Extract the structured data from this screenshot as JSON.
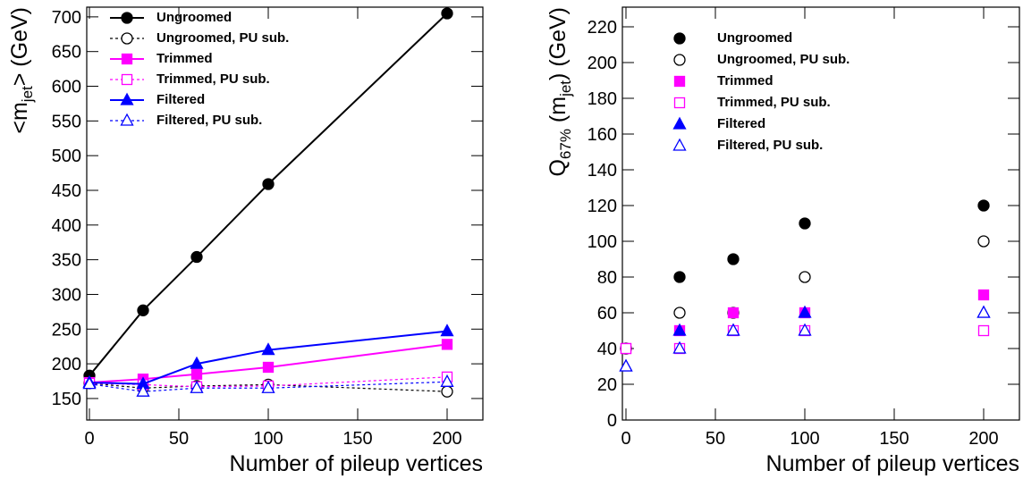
{
  "chart_data": [
    {
      "type": "line",
      "ylabel": [
        "<m",
        "jet",
        "> (GeV)"
      ],
      "xlabel": "Number of pileup vertices",
      "lines": true,
      "x": [
        0,
        30,
        60,
        100,
        200
      ],
      "xlim": [
        -1.5,
        220
      ],
      "xticks": [
        0,
        50,
        100,
        150,
        200
      ],
      "ylim": [
        119,
        714
      ],
      "yticks": [
        150,
        200,
        250,
        300,
        350,
        400,
        450,
        500,
        550,
        600,
        650,
        700
      ],
      "legend": "top-left",
      "series": [
        {
          "name": "Ungroomed",
          "color": "#000000",
          "marker": "circle",
          "dashed": false,
          "values": [
            183,
            277,
            354,
            459,
            705
          ]
        },
        {
          "name": "Ungroomed, PU sub.",
          "color": "#000000",
          "marker": "open-circle",
          "dashed": true,
          "values": [
            172,
            165,
            168,
            170,
            160
          ]
        },
        {
          "name": "Trimmed",
          "color": "#ff00ff",
          "marker": "square",
          "dashed": false,
          "values": [
            173,
            178,
            185,
            195,
            228
          ]
        },
        {
          "name": "Trimmed, PU sub.",
          "color": "#ff00ff",
          "marker": "open-square",
          "dashed": true,
          "values": [
            172,
            170,
            167,
            168,
            181
          ]
        },
        {
          "name": "Filtered",
          "color": "#0000ff",
          "marker": "triangle",
          "dashed": false,
          "values": [
            173,
            171,
            200,
            220,
            247
          ]
        },
        {
          "name": "Filtered, PU sub.",
          "color": "#0000ff",
          "marker": "open-triangle",
          "dashed": true,
          "values": [
            171,
            160,
            165,
            165,
            174
          ]
        }
      ]
    },
    {
      "type": "scatter",
      "ylabel": [
        "Q",
        "67%",
        " (m",
        "jet",
        ") (GeV)"
      ],
      "xlabel": "Number of pileup vertices",
      "lines": false,
      "x": [
        0,
        30,
        60,
        100,
        200
      ],
      "xlim": [
        -2,
        220
      ],
      "xticks": [
        0,
        50,
        100,
        150,
        200
      ],
      "ylim": [
        0,
        231
      ],
      "yticks": [
        0,
        20,
        40,
        60,
        80,
        100,
        120,
        140,
        160,
        180,
        200,
        220
      ],
      "legend": "top-left",
      "series": [
        {
          "name": "Ungroomed",
          "color": "#000000",
          "marker": "circle",
          "values": [
            40,
            80,
            90,
            110,
            120
          ]
        },
        {
          "name": "Ungroomed, PU sub.",
          "color": "#000000",
          "marker": "open-circle",
          "values": [
            40,
            60,
            60,
            80,
            100
          ]
        },
        {
          "name": "Trimmed",
          "color": "#ff00ff",
          "marker": "square",
          "values": [
            40,
            50,
            60,
            60,
            70
          ]
        },
        {
          "name": "Trimmed, PU sub.",
          "color": "#ff00ff",
          "marker": "open-square",
          "values": [
            40,
            40,
            50,
            50,
            50
          ]
        },
        {
          "name": "Filtered",
          "color": "#0000ff",
          "marker": "triangle",
          "values": [
            30,
            50,
            50,
            60,
            60
          ]
        },
        {
          "name": "Filtered, PU sub.",
          "color": "#0000ff",
          "marker": "open-triangle",
          "values": [
            30,
            40,
            50,
            50,
            60
          ]
        }
      ]
    }
  ]
}
